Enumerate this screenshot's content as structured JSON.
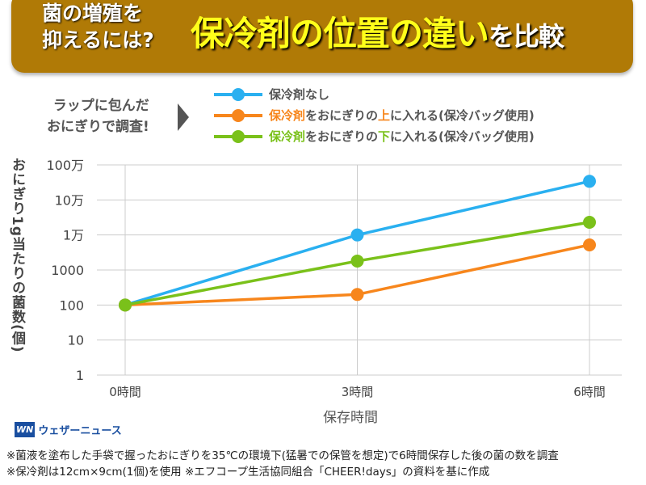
{
  "header": {
    "subtitle_line1": "菌の増殖を",
    "subtitle_line2": "抑えるには?",
    "title_main": "保冷剤の位置の違い",
    "title_tail": "を比較"
  },
  "note": {
    "line1": "ラップに包んだ",
    "line2": "おにぎりで調査!"
  },
  "legend": [
    {
      "prefix": "保冷剤なし",
      "mid": "",
      "key": "",
      "tail": "",
      "color": "#2ab0f0"
    },
    {
      "prefix": "保冷剤",
      "mid": "をおにぎりの",
      "key": "上",
      "tail": "に入れる(保冷バッグ使用)",
      "color": "#f7861c"
    },
    {
      "prefix": "保冷剤",
      "mid": "をおにぎりの",
      "key": "下",
      "tail": "に入れる(保冷バッグ使用)",
      "color": "#7ac11a"
    }
  ],
  "chart_data": {
    "type": "line",
    "xlabel": "保存時間",
    "ylabel": "おにぎり1g当たりの菌数(個)",
    "categories": [
      "0時間",
      "3時間",
      "6時間"
    ],
    "x": [
      0,
      3,
      6
    ],
    "yscale": "log",
    "ylim": [
      1,
      1000000
    ],
    "yticks": [
      1,
      10,
      100,
      1000,
      10000,
      100000,
      1000000
    ],
    "ytick_labels": [
      "1",
      "10",
      "100",
      "1000",
      "1万",
      "10万",
      "100万"
    ],
    "grid": "horizontal",
    "series": [
      {
        "name": "保冷剤なし",
        "color": "#2ab0f0",
        "values": [
          100,
          10000,
          340000
        ]
      },
      {
        "name": "保冷剤をおにぎりの上に入れる(保冷バッグ使用)",
        "color": "#f7861c",
        "values": [
          100,
          200,
          5200
        ]
      },
      {
        "name": "保冷剤をおにぎりの下に入れる(保冷バッグ使用)",
        "color": "#7ac11a",
        "values": [
          100,
          1800,
          23000
        ]
      }
    ]
  },
  "logo": {
    "mark": "WN",
    "text": "ウェザーニュース"
  },
  "footnotes": [
    "※菌液を塗布した手袋で握ったおにぎりを35℃の環境下(猛暑での保管を想定)で6時間保存した後の菌の数を調査",
    "※保冷剤は12cm×9cm(1個)を使用 ※エフコープ生活協同組合「CHEER!days」の資料を基に作成"
  ]
}
